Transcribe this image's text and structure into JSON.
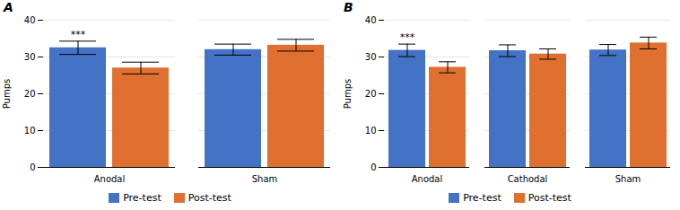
{
  "chart_data": [
    {
      "type": "bar",
      "title": "A",
      "categories": [
        "Anodal",
        "Sham"
      ],
      "series": [
        {
          "name": "Pre-test",
          "color": "#4472C4",
          "values": [
            32.5,
            32.0
          ],
          "errors": [
            1.8,
            1.5
          ]
        },
        {
          "name": "Post-test",
          "color": "#E07030",
          "values": [
            27.0,
            33.2
          ],
          "errors": [
            1.6,
            1.6
          ]
        }
      ],
      "annotations": [
        {
          "text": "***",
          "category": "Anodal",
          "series": "Pre-test"
        }
      ],
      "ylabel": "Pumps",
      "ylim": [
        0,
        40
      ],
      "yticks": [
        0,
        10,
        20,
        30,
        40
      ],
      "grid": true,
      "legend": "bottom"
    },
    {
      "type": "bar",
      "title": "B",
      "categories": [
        "Anodal",
        "Cathodal",
        "Sham"
      ],
      "series": [
        {
          "name": "Pre-test",
          "color": "#4472C4",
          "values": [
            31.8,
            31.7,
            31.9
          ],
          "errors": [
            1.7,
            1.6,
            1.5
          ]
        },
        {
          "name": "Post-test",
          "color": "#E07030",
          "values": [
            27.2,
            30.8,
            33.8
          ],
          "errors": [
            1.5,
            1.4,
            1.6
          ]
        }
      ],
      "annotations": [
        {
          "text": "***",
          "category": "Anodal",
          "series": "Pre-test"
        }
      ],
      "ylabel": "Pumps",
      "ylim": [
        0,
        40
      ],
      "yticks": [
        0,
        10,
        20,
        30,
        40
      ],
      "grid": true,
      "legend": "bottom"
    }
  ]
}
